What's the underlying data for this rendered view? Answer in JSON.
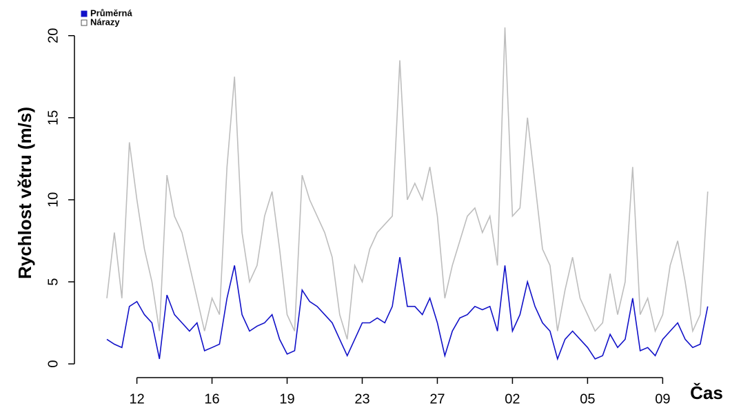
{
  "chart_data": {
    "type": "line",
    "y_label": "Rychlost větru (m/s)",
    "x_label": "Čas",
    "legend": "top-left",
    "x": [
      0.6,
      0.7,
      0.8,
      0.9,
      1.0,
      1.1,
      1.2,
      1.3,
      1.4,
      1.5,
      1.6,
      1.7,
      1.8,
      1.9,
      2.0,
      2.1,
      2.2,
      2.3,
      2.4,
      2.5,
      2.6,
      2.7,
      2.8,
      2.9,
      3.0,
      3.1,
      3.2,
      3.3,
      3.4,
      3.5,
      3.6,
      3.7,
      3.8,
      3.9,
      4.0,
      4.1,
      4.2,
      4.3,
      4.4,
      4.5,
      4.6,
      4.7,
      4.8,
      4.9,
      5.0,
      5.1,
      5.2,
      5.3,
      5.4,
      5.5,
      5.6,
      5.7,
      5.8,
      5.9,
      6.0,
      6.1,
      6.2,
      6.3,
      6.4,
      6.5,
      6.6,
      6.7,
      6.8,
      6.9,
      7.0,
      7.1,
      7.2,
      7.3,
      7.4,
      7.5,
      7.6,
      7.7,
      7.8,
      7.9,
      8.0,
      8.1,
      8.2,
      8.3,
      8.4,
      8.5,
      8.6
    ],
    "series": [
      {
        "name": "Nárazy",
        "color": "#bdbdbd",
        "values": [
          4,
          8,
          4,
          13.5,
          10,
          7,
          5,
          2,
          11.5,
          9,
          8,
          6,
          4,
          2,
          4,
          3,
          12,
          17.5,
          8,
          5,
          6,
          9,
          10.5,
          7,
          3,
          2,
          11.5,
          10,
          9,
          8,
          6.5,
          3,
          1.5,
          6,
          5,
          7,
          8,
          8.5,
          9,
          18.5,
          10,
          11,
          10,
          12,
          9,
          4,
          6,
          7.5,
          9,
          9.5,
          8,
          9,
          6,
          20.5,
          9,
          9.5,
          15,
          11,
          7,
          6,
          2,
          4.5,
          6.5,
          4,
          3,
          2,
          2.5,
          5.5,
          3,
          5,
          12,
          3,
          4,
          2,
          3,
          6,
          7.5,
          5,
          2,
          3,
          10.5
        ]
      },
      {
        "name": "Průměrná",
        "color": "#1010c8",
        "values": [
          1.5,
          1.2,
          1,
          3.5,
          3.8,
          3,
          2.5,
          0.3,
          4.2,
          3,
          2.5,
          2,
          2.5,
          0.8,
          1,
          1.2,
          4,
          6,
          3,
          2,
          2.3,
          2.5,
          3,
          1.5,
          0.6,
          0.8,
          4.5,
          3.8,
          3.5,
          3,
          2.5,
          1.5,
          0.5,
          1.5,
          2.5,
          2.5,
          2.8,
          2.5,
          3.5,
          6.5,
          3.5,
          3.5,
          3,
          4,
          2.5,
          0.5,
          2,
          2.8,
          3,
          3.5,
          3.3,
          3.5,
          2,
          6,
          2,
          3,
          5,
          3.5,
          2.5,
          2,
          0.3,
          1.5,
          2,
          1.5,
          1,
          0.3,
          0.5,
          1.8,
          1,
          1.5,
          4,
          0.8,
          1,
          0.5,
          1.5,
          2,
          2.5,
          1.5,
          1,
          1.2,
          3.5
        ]
      }
    ],
    "xlim": [
      0.6,
      8.63
    ],
    "xticks": [
      {
        "value": 1,
        "label": "12"
      },
      {
        "value": 2,
        "label": "16"
      },
      {
        "value": 3,
        "label": "19"
      },
      {
        "value": 4,
        "label": "23"
      },
      {
        "value": 5,
        "label": "27"
      },
      {
        "value": 6,
        "label": "02"
      },
      {
        "value": 7,
        "label": "05"
      },
      {
        "value": 8,
        "label": "09"
      }
    ],
    "ylim": [
      -0.5,
      21.5
    ],
    "yticks": [
      0,
      5,
      10,
      15,
      20
    ]
  }
}
